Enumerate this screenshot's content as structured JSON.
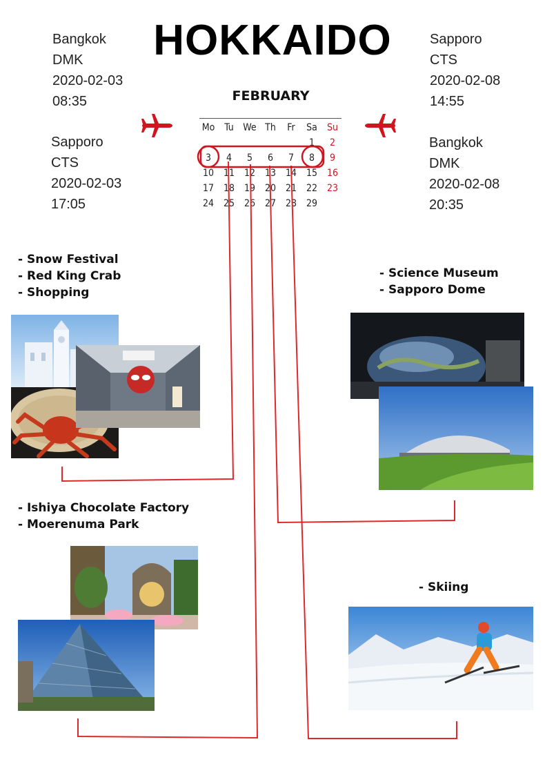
{
  "title": "HOKKAIDO",
  "flights": {
    "left_top": [
      "Bangkok",
      "DMK",
      "2020-02-03",
      "08:35"
    ],
    "left_bottom": [
      "Sapporo",
      "CTS",
      "2020-02-03",
      "17:05"
    ],
    "right_top": [
      "Sapporo",
      "CTS",
      "2020-02-08",
      "14:55"
    ],
    "right_bottom": [
      "Bangkok",
      "DMK",
      "2020-02-08",
      "20:35"
    ]
  },
  "calendar": {
    "month": "FEBRUARY",
    "weekdays": [
      "Mo",
      "Tu",
      "We",
      "Th",
      "Fr",
      "Sa",
      "Su"
    ],
    "weeks": [
      [
        "",
        "",
        "",
        "",
        "",
        "1",
        "2"
      ],
      [
        "3",
        "4",
        "5",
        "6",
        "7",
        "8",
        "9"
      ],
      [
        "10",
        "11",
        "12",
        "13",
        "14",
        "15",
        "16"
      ],
      [
        "17",
        "18",
        "19",
        "20",
        "21",
        "22",
        "23"
      ],
      [
        "24",
        "25",
        "26",
        "27",
        "28",
        "29",
        ""
      ]
    ],
    "sunday_color": "#d0151e"
  },
  "activities": {
    "day3": [
      "- Snow Festival",
      "- Red King Crab",
      "- Shopping"
    ],
    "day4": [
      "- Ishiya Chocolate Factory",
      "- Moerenuma Park"
    ],
    "day5": [
      "- Science Museum",
      "- Sapporo Dome"
    ],
    "day6": [
      "- Skiing"
    ]
  },
  "colors": {
    "accent": "#d0151e"
  }
}
